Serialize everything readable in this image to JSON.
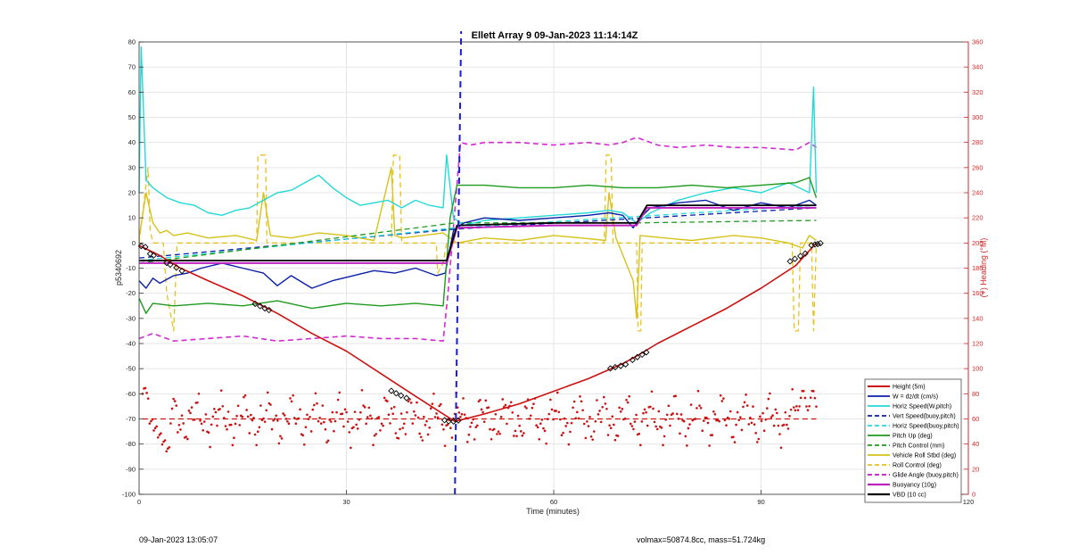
{
  "chart_data": {
    "type": "line",
    "title": "Ellett Array 9 09-Jan-2023 11:14:14Z",
    "xlabel": "Time (minutes)",
    "ylabel_left": "p5340692",
    "ylabel_right": "(+) Heading (°M)",
    "xlim": [
      0,
      120
    ],
    "ylim_left": [
      -100,
      80
    ],
    "ylim_right": [
      0,
      360
    ],
    "x_ticks": [
      0,
      30,
      60,
      90,
      120
    ],
    "y_ticks_left": [
      -100,
      -90,
      -80,
      -70,
      -60,
      -50,
      -40,
      -30,
      -20,
      -10,
      0,
      10,
      20,
      30,
      40,
      50,
      60,
      70,
      80
    ],
    "y_ticks_right": [
      0,
      20,
      40,
      60,
      80,
      100,
      120,
      140,
      160,
      180,
      200,
      220,
      240,
      260,
      280,
      300,
      320,
      340,
      360
    ],
    "right_axis_color": "#d62728",
    "grid": true,
    "legend_position": "bottom-right",
    "vertical_marker_x": 45.7,
    "series": [
      {
        "name": "Height (5m)",
        "color": "#cc1111",
        "style": "solid",
        "width": 1.6,
        "x": [
          0,
          3,
          6,
          10,
          15,
          20,
          25,
          30,
          35,
          40,
          44,
          45.7,
          50,
          55,
          60,
          65,
          70,
          72,
          75,
          80,
          85,
          90,
          95,
          98
        ],
        "y": [
          -1,
          -5,
          -10,
          -15,
          -21,
          -28,
          -36,
          -43,
          -52,
          -61,
          -68,
          -71,
          -68,
          -64,
          -59,
          -54,
          -48,
          -45,
          -40,
          -33,
          -26,
          -18,
          -9,
          0
        ]
      },
      {
        "name": "W = dz/dt (cm/s)",
        "color": "#0b1fa8",
        "style": "solid",
        "width": 1.4,
        "x": [
          0,
          1,
          2,
          3,
          5,
          7,
          9,
          12,
          15,
          18,
          20,
          22,
          25,
          28,
          31,
          34,
          37,
          40,
          43,
          44.3,
          45.5,
          47,
          50,
          55,
          60,
          65,
          68,
          70,
          71.5,
          72.5,
          74,
          78,
          82,
          86,
          90,
          94,
          97,
          98
        ],
        "y": [
          -15,
          -18,
          -14,
          -16,
          -13,
          -12,
          -10,
          -8,
          -10,
          -12,
          -17,
          -13,
          -18,
          -15,
          -13,
          -11,
          -12,
          -10,
          -13,
          -12,
          5,
          8,
          10,
          9,
          10,
          11,
          12,
          11,
          6,
          10,
          14,
          16,
          17,
          13,
          16,
          14,
          17,
          15
        ]
      },
      {
        "name": "Horiz Speed(W,pitch)",
        "color": "#25d8d8",
        "style": "solid",
        "width": 1.4,
        "x": [
          0,
          0.3,
          1,
          2,
          4,
          6,
          8,
          10,
          12,
          14,
          16,
          18,
          20,
          22,
          24,
          26,
          28,
          30,
          32,
          34,
          36,
          38,
          40,
          42,
          44,
          44.5,
          45.5,
          47,
          50,
          55,
          60,
          65,
          68,
          70,
          72,
          74,
          78,
          82,
          86,
          90,
          94,
          97,
          97.6,
          98
        ],
        "y": [
          20,
          78,
          25,
          22,
          18,
          16,
          15,
          12,
          11,
          13,
          14,
          17,
          20,
          21,
          24,
          27,
          22,
          18,
          15,
          16,
          17,
          14,
          17,
          15,
          14,
          35,
          10,
          7,
          9,
          10,
          11,
          12,
          13,
          12,
          8,
          12,
          17,
          20,
          22,
          20,
          24,
          20,
          62,
          20
        ]
      },
      {
        "name": "Vert Speed(buoy,pitch)",
        "color": "#0b1fa8",
        "style": "dashed",
        "width": 1.3,
        "x": [
          0,
          45.7,
          98
        ],
        "y": [
          -6,
          5.5,
          14
        ]
      },
      {
        "name": "Horiz Speed(buoy,pitch)",
        "color": "#25d8d8",
        "style": "dashed",
        "width": 1.3,
        "x": [
          0,
          45.7,
          98
        ],
        "y": [
          -7,
          6,
          15
        ]
      },
      {
        "name": "Pitch Up (deg)",
        "color": "#1e9a1e",
        "style": "solid",
        "width": 1.4,
        "x": [
          0,
          1,
          2,
          5,
          10,
          15,
          20,
          25,
          30,
          35,
          40,
          44,
          45,
          46,
          50,
          55,
          60,
          65,
          70,
          75,
          80,
          85,
          90,
          95,
          97,
          98
        ],
        "y": [
          -22,
          -28,
          -24,
          -25,
          -24,
          -25,
          -23,
          -26,
          -24,
          -25,
          -24,
          -25,
          10,
          23,
          23,
          22,
          22,
          23,
          22,
          22,
          23,
          22,
          23,
          24,
          26,
          18
        ]
      },
      {
        "name": "Pitch Control (mm)",
        "color": "#1e9a1e",
        "style": "dashed",
        "width": 1.3,
        "x": [
          0,
          45.7,
          72,
          98
        ],
        "y": [
          -8,
          8,
          8,
          9
        ]
      },
      {
        "name": "Vehicle Roll Stbd (deg)",
        "color": "#d6c21a",
        "style": "solid",
        "width": 1.4,
        "x": [
          0,
          1,
          2,
          3,
          4,
          5,
          7,
          10,
          14,
          17,
          18,
          19,
          22,
          26,
          30,
          34,
          36.5,
          37,
          38,
          41,
          44,
          45,
          46,
          50,
          55,
          60,
          64,
          67.5,
          68,
          69,
          71.5,
          72,
          72.5,
          76,
          80,
          86,
          90,
          94,
          96,
          97,
          98
        ],
        "y": [
          2,
          20,
          8,
          4,
          5,
          3,
          4,
          2,
          3,
          1,
          20,
          3,
          2,
          4,
          3,
          1,
          30,
          3,
          2,
          3,
          4,
          2,
          0,
          2,
          1,
          3,
          2,
          1,
          20,
          2,
          -15,
          -30,
          3,
          2,
          1,
          3,
          2,
          0,
          -2,
          3,
          1
        ]
      },
      {
        "name": "Roll Control (deg)",
        "color": "#e8c21c",
        "style": "dashed",
        "width": 1.3,
        "x": [
          0,
          1.3,
          1.6,
          2,
          3.5,
          4,
          5,
          5.5,
          6,
          17,
          17.2,
          18.3,
          18.5,
          36.5,
          36.8,
          37.7,
          38,
          43,
          43.2,
          44,
          44.5,
          45.5,
          67.3,
          67.6,
          68.3,
          68.6,
          72,
          72.2,
          72.6,
          72.8,
          94.5,
          94.8,
          95.4,
          95.7,
          97.3,
          97.6,
          98
        ],
        "y": [
          0,
          30,
          5,
          0,
          0,
          -20,
          -35,
          0,
          0,
          0,
          35,
          35,
          0,
          0,
          35,
          35,
          0,
          0,
          -12,
          -8,
          0,
          0,
          0,
          35,
          35,
          0,
          0,
          -35,
          -35,
          0,
          0,
          -35,
          -35,
          0,
          0,
          -35,
          0
        ]
      },
      {
        "name": "Glide Angle (buoy,pitch)",
        "color": "#d12ad1",
        "style": "dashed",
        "width": 1.6,
        "x": [
          0,
          2,
          5,
          10,
          15,
          20,
          25,
          30,
          35,
          40,
          44,
          44.7,
          46.5,
          48,
          50,
          55,
          60,
          65,
          68,
          70,
          72,
          75,
          78,
          82,
          86,
          90,
          95,
          97,
          98
        ],
        "y": [
          -38,
          -36,
          -39,
          -38,
          -37,
          -39,
          -38,
          -37,
          -38,
          -38,
          -39,
          -20,
          40,
          39,
          40,
          40,
          39,
          40,
          39,
          40,
          42,
          39,
          38,
          39,
          38,
          38,
          37,
          40,
          38
        ]
      },
      {
        "name": "Buoyancy (10g)",
        "color": "#c022c0",
        "style": "solid",
        "width": 2.0,
        "x": [
          0,
          44,
          44.5,
          46,
          60,
          72,
          73.5,
          98
        ],
        "y": [
          -8,
          -8,
          -8,
          6,
          7,
          7,
          14,
          14
        ]
      },
      {
        "name": "VBD (10 cc)",
        "color": "#000000",
        "style": "solid",
        "width": 1.8,
        "x": [
          0,
          44,
          44.5,
          46,
          60,
          72,
          73.5,
          98
        ],
        "y": [
          -7,
          -7,
          -7,
          7,
          8,
          8,
          15,
          15
        ]
      }
    ],
    "heading_points": {
      "color": "#cc1111",
      "mean_line": 60,
      "x_start": 0.5,
      "x_end": 98,
      "n_points": 480
    },
    "marker_points": {
      "x": [
        0.3,
        0.9,
        1.6,
        2.1,
        4.0,
        4.5,
        5.4,
        6.2,
        16.8,
        17.5,
        18.2,
        18.8,
        36.5,
        37.2,
        37.9,
        38.7,
        44.2,
        44.8,
        45.5,
        46.2,
        68.2,
        68.9,
        69.7,
        70.4,
        71.4,
        72.1,
        72.8,
        73.4,
        94.2,
        94.9,
        95.7,
        96.4,
        97.3,
        97.8,
        98.2,
        98.6
      ],
      "y": [
        -1.2,
        -1.6,
        -4.3,
        -5.0,
        -7.9,
        -8.6,
        -9.8,
        -11.1,
        -24.2,
        -25.1,
        -26.0,
        -26.7,
        -58.8,
        -59.8,
        -60.7,
        -61.7,
        -70.5,
        -70.9,
        -71.0,
        -70.6,
        -49.9,
        -49.4,
        -48.9,
        -48.3,
        -46.5,
        -45.4,
        -44.4,
        -43.5,
        -7.3,
        -6.3,
        -5.2,
        -4.2,
        -0.9,
        -0.6,
        -0.4,
        -0.1
      ]
    }
  },
  "footer": {
    "left_text": "09-Jan-2023 13:05:07",
    "right_text": "volmax=50874.8cc, mass=51.724kg"
  }
}
